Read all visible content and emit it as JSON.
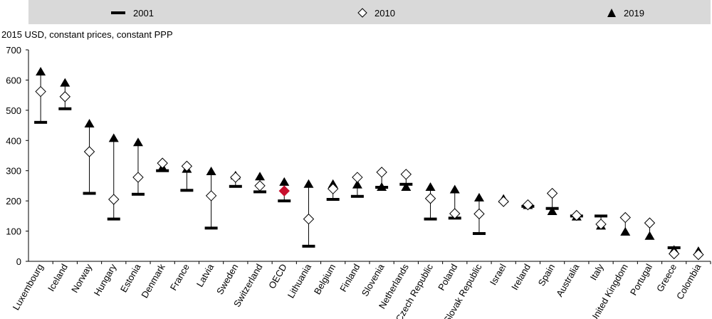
{
  "units_label": "2015 USD, constant prices, constant PPP",
  "legend": [
    {
      "label": "2001",
      "marker": "dash"
    },
    {
      "label": "2010",
      "marker": "diamond-open"
    },
    {
      "label": "2019",
      "marker": "triangle"
    }
  ],
  "chart_data": {
    "type": "scatter",
    "ylim": [
      0,
      700
    ],
    "yticks": [
      0,
      100,
      200,
      300,
      400,
      500,
      600,
      700
    ],
    "grid": false,
    "legend_position": "top",
    "highlight_color": "#c8102e",
    "categories": [
      "Luxembourg",
      "Iceland",
      "Norway",
      "Hungary",
      "Estonia",
      "Denmark",
      "France",
      "Latvia",
      "Sweden",
      "Switzerland",
      "OECD",
      "Lithuania",
      "Belgium",
      "Finland",
      "Slovenia",
      "Netherlands",
      "Czech Republic",
      "Poland",
      "Slovak Republic",
      "Israel",
      "Ireland",
      "Spain",
      "Australia",
      "Italy",
      "United Kingdom",
      "Portugal",
      "Greece",
      "Colombia"
    ],
    "highlight_category": "OECD",
    "series": [
      {
        "name": "2001",
        "values": [
          460,
          505,
          225,
          140,
          222,
          300,
          235,
          110,
          248,
          230,
          200,
          50,
          205,
          215,
          245,
          255,
          140,
          143,
          92,
          null,
          182,
          175,
          150,
          150,
          null,
          null,
          45,
          null
        ]
      },
      {
        "name": "2010",
        "values": [
          562,
          545,
          363,
          205,
          278,
          325,
          315,
          217,
          278,
          250,
          233,
          140,
          240,
          278,
          295,
          288,
          208,
          158,
          157,
          198,
          187,
          225,
          152,
          123,
          145,
          127,
          25,
          22
        ]
      },
      {
        "name": "2019",
        "values": [
          627,
          590,
          455,
          407,
          393,
          310,
          305,
          297,
          283,
          280,
          262,
          255,
          255,
          253,
          245,
          245,
          245,
          237,
          210,
          206,
          185,
          165,
          147,
          117,
          97,
          83,
          37,
          33
        ]
      }
    ]
  }
}
